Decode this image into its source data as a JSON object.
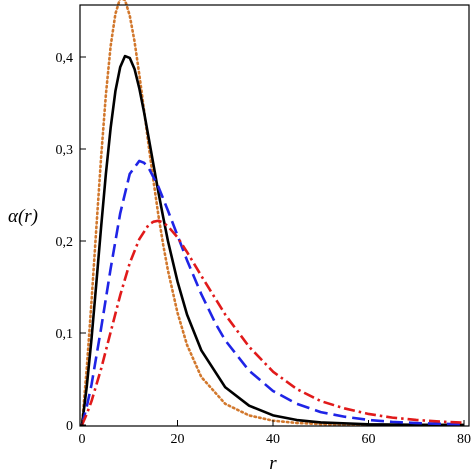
{
  "chart_data": {
    "type": "line",
    "xlabel": "r",
    "ylabel": "α(r)",
    "xlim": [
      0,
      80
    ],
    "ylim": [
      0,
      0.45
    ],
    "grid": false,
    "legend": "none",
    "x_ticks": [
      {
        "value": 0,
        "label": "0"
      },
      {
        "value": 20,
        "label": "20"
      },
      {
        "value": 40,
        "label": "40"
      },
      {
        "value": 60,
        "label": "60"
      },
      {
        "value": 80,
        "label": "80"
      }
    ],
    "y_ticks": [
      {
        "value": 0,
        "label": "0"
      },
      {
        "value": 0.1,
        "label": "0,1"
      },
      {
        "value": 0.2,
        "label": "0,2"
      },
      {
        "value": 0.3,
        "label": "0,3"
      },
      {
        "value": 0.4,
        "label": "0,4"
      }
    ],
    "series": [
      {
        "style": "dotted",
        "color": "#d2782d",
        "x": [
          0,
          1,
          2,
          3,
          4,
          5,
          6,
          7,
          8,
          9,
          10,
          11,
          12,
          13,
          14,
          15,
          16,
          17,
          18,
          20,
          22,
          25,
          30,
          35,
          40,
          45,
          50,
          60,
          70,
          80
        ],
        "y": [
          0,
          0.062,
          0.135,
          0.214,
          0.291,
          0.359,
          0.412,
          0.447,
          0.464,
          0.462,
          0.445,
          0.417,
          0.381,
          0.342,
          0.302,
          0.264,
          0.228,
          0.196,
          0.168,
          0.122,
          0.087,
          0.052,
          0.023,
          0.0104,
          0.0047,
          0.0022,
          0.001,
          0.0002,
          5e-05,
          1e-05
        ]
      },
      {
        "style": "solid",
        "color": "#000000",
        "x": [
          0,
          1,
          2,
          3,
          4,
          5,
          6,
          7,
          8,
          9,
          10,
          11,
          12,
          13,
          14,
          15,
          16,
          17,
          18,
          20,
          22,
          25,
          30,
          35,
          40,
          45,
          50,
          60,
          70,
          80
        ],
        "y": [
          0,
          0.042,
          0.094,
          0.154,
          0.215,
          0.273,
          0.323,
          0.363,
          0.389,
          0.401,
          0.399,
          0.387,
          0.366,
          0.34,
          0.311,
          0.282,
          0.253,
          0.226,
          0.2,
          0.156,
          0.12,
          0.081,
          0.041,
          0.021,
          0.0105,
          0.0054,
          0.0028,
          0.0008,
          0.0002,
          6e-05
        ]
      },
      {
        "style": "dashed",
        "color": "#1f24e6",
        "x": [
          0,
          1,
          2,
          4,
          6,
          8,
          10,
          12,
          13,
          14,
          16,
          18,
          20,
          22,
          25,
          28,
          30,
          35,
          40,
          45,
          50,
          55,
          60,
          65,
          70,
          75,
          80
        ],
        "y": [
          0,
          0.02,
          0.044,
          0.105,
          0.17,
          0.23,
          0.273,
          0.287,
          0.285,
          0.279,
          0.259,
          0.233,
          0.206,
          0.179,
          0.142,
          0.11,
          0.092,
          0.059,
          0.037,
          0.023,
          0.014,
          0.009,
          0.0055,
          0.0034,
          0.0021,
          0.0013,
          0.0008
        ]
      },
      {
        "style": "dash-dot",
        "color": "#e11a1a",
        "x": [
          0,
          1,
          2,
          4,
          6,
          8,
          10,
          12,
          14,
          15,
          16,
          17,
          18,
          20,
          22,
          25,
          30,
          35,
          40,
          45,
          50,
          55,
          60,
          65,
          70,
          75,
          80
        ],
        "y": [
          0,
          0.012,
          0.026,
          0.061,
          0.101,
          0.141,
          0.176,
          0.202,
          0.218,
          0.221,
          0.222,
          0.22,
          0.216,
          0.204,
          0.188,
          0.162,
          0.12,
          0.085,
          0.058,
          0.039,
          0.026,
          0.018,
          0.012,
          0.008,
          0.0055,
          0.0037,
          0.0025
        ]
      }
    ]
  }
}
